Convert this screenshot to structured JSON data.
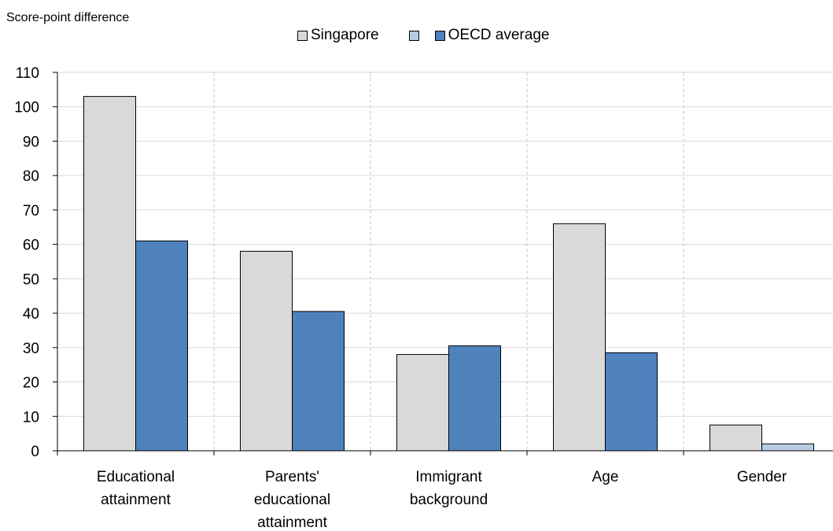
{
  "chart_data": {
    "type": "bar",
    "ylabel": "Score-point difference",
    "ylim": [
      0,
      110
    ],
    "yticks": [
      0,
      10,
      20,
      30,
      40,
      50,
      60,
      70,
      80,
      90,
      100,
      110
    ],
    "categories": [
      [
        "Educational",
        "attainment"
      ],
      [
        "Parents'",
        "educational",
        "attainment"
      ],
      [
        "Immigrant",
        "background"
      ],
      [
        "Age"
      ],
      [
        "Gender"
      ]
    ],
    "series": [
      {
        "name": "Singapore",
        "color": "#d9d9d9",
        "values": [
          103,
          58,
          28,
          66,
          7.5
        ]
      },
      {
        "name": "OECD average",
        "color": "#4f81bd",
        "light_color": "#b8cce4",
        "values": [
          61,
          40.5,
          30.5,
          28.5,
          2
        ]
      }
    ],
    "light_indices": [
      4
    ],
    "grid": true,
    "legend": "top-center"
  }
}
